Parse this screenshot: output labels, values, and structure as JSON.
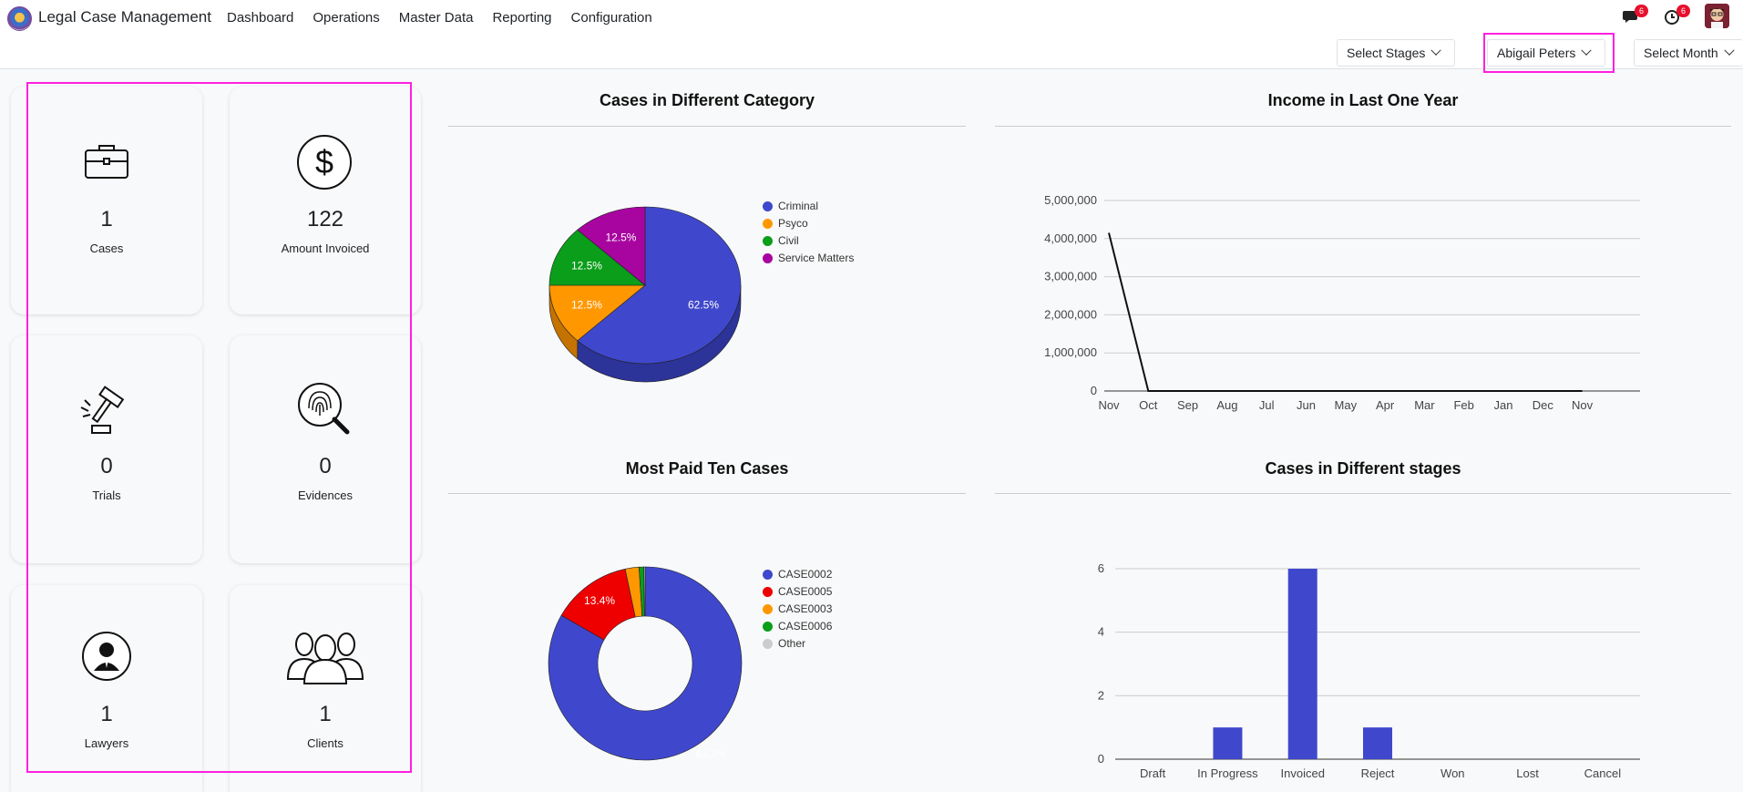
{
  "app": {
    "title": "Legal Case Management"
  },
  "menu": [
    "Dashboard",
    "Operations",
    "Master Data",
    "Reporting",
    "Configuration"
  ],
  "notifications": {
    "messages_count": "6",
    "activities_count": "6"
  },
  "filters": {
    "stages": "Select Stages",
    "user": "Abigail Peters",
    "month": "Select Month"
  },
  "cards": [
    {
      "icon": "briefcase-icon",
      "value": "1",
      "label": "Cases"
    },
    {
      "icon": "dollar-icon",
      "value": "122",
      "label": "Amount Invoiced"
    },
    {
      "icon": "gavel-icon",
      "value": "0",
      "label": "Trials"
    },
    {
      "icon": "fingerprint-search-icon",
      "value": "0",
      "label": "Evidences"
    },
    {
      "icon": "lawyer-icon",
      "value": "1",
      "label": "Lawyers"
    },
    {
      "icon": "clients-icon",
      "value": "1",
      "label": "Clients"
    }
  ],
  "colors": {
    "blue": "#3f48cc",
    "orange": "#ff9800",
    "green": "#0a9e1a",
    "purple": "#a8049f",
    "red": "#ee0000",
    "grey": "#cccccc",
    "highlight": "#ff20e0"
  },
  "chart_data": [
    {
      "type": "pie",
      "title": "Cases in Different Category",
      "categories": [
        "Criminal",
        "Psyco",
        "Civil",
        "Service Matters"
      ],
      "values": [
        62.5,
        12.5,
        12.5,
        12.5
      ],
      "labels": [
        "62.5%",
        "12.5%",
        "12.5%",
        "12.5%"
      ],
      "style": "3d",
      "legend": "right"
    },
    {
      "type": "line",
      "title": "Income in Last One Year",
      "x": [
        "Nov",
        "Oct",
        "Sep",
        "Aug",
        "Jul",
        "Jun",
        "May",
        "Apr",
        "Mar",
        "Feb",
        "Jan",
        "Dec",
        "Nov"
      ],
      "values": [
        4150000,
        0,
        0,
        0,
        0,
        0,
        0,
        0,
        0,
        0,
        0,
        0,
        0
      ],
      "ylim": [
        0,
        5000000
      ],
      "yticks": [
        "0",
        "1,000,000",
        "2,000,000",
        "3,000,000",
        "4,000,000",
        "5,000,000"
      ],
      "grid": true
    },
    {
      "type": "pie",
      "title": "Most Paid Ten Cases",
      "style": "donut",
      "categories": [
        "CASE0002",
        "CASE0005",
        "CASE0003",
        "CASE0006",
        "Other"
      ],
      "values": [
        83.3,
        13.4,
        2.3,
        0.8,
        0.2
      ],
      "labels": [
        "83.3%",
        "13.4%",
        "",
        "",
        ""
      ],
      "legend": "right"
    },
    {
      "type": "bar",
      "title": "Cases in Different stages",
      "categories": [
        "Draft",
        "In Progress",
        "Invoiced",
        "Reject",
        "Won",
        "Lost",
        "Cancel"
      ],
      "values": [
        0,
        1,
        6,
        1,
        0,
        0,
        0
      ],
      "ylim": [
        0,
        6
      ],
      "yticks": [
        "0",
        "2",
        "4",
        "6"
      ],
      "grid": true
    }
  ]
}
